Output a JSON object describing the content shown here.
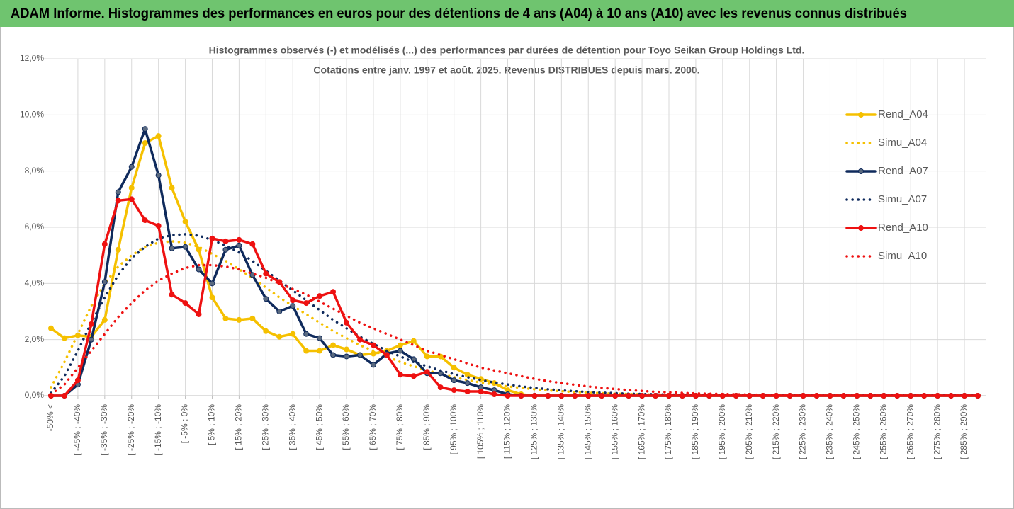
{
  "header": {
    "title": "ADAM Informe. Histogrammes des performances en euros pour des détentions de 4 ans (A04) à 10 ans (A10) avec les revenus connus distribués"
  },
  "chart_data": {
    "type": "line",
    "title": "Histogrammes observés (-) et modélisés (...) des performances par durées de détention pour Toyo Seikan Group Holdings Ltd.",
    "subtitle": "Cotations entre janv. 1997 et août. 2025. Revenus DISTRIBUES depuis mars. 2000.",
    "categories": [
      "-50% <",
      null,
      "[ -45% ; -40%",
      null,
      "[ -35% ; -30%",
      null,
      "[ -25% ; -20%",
      null,
      "[ -15% ; -10%",
      null,
      "[ -5% ; 0%",
      null,
      "[ 5% ; 10%",
      null,
      "[ 15% ; 20%",
      null,
      "[ 25% ; 30%",
      null,
      "[ 35% ; 40%",
      null,
      "[ 45% ; 50%",
      null,
      "[ 55% ; 60%",
      null,
      "[ 65% ; 70%",
      null,
      "[ 75% ; 80%",
      null,
      "[ 85% ; 90%",
      null,
      "[ 95% ; 100%",
      null,
      "[ 105% ; 110%",
      null,
      "[ 115% ; 120%",
      null,
      "[ 125% ; 130%",
      null,
      "[ 135% ; 140%",
      null,
      "[ 145% ; 150%",
      null,
      "[ 155% ; 160%",
      null,
      "[ 165% ; 170%",
      null,
      "[ 175% ; 180%",
      null,
      "[ 185% ; 190%",
      null,
      "[ 195% ; 200%",
      null,
      "[ 205% ; 210%",
      null,
      "[ 215% ; 220%",
      null,
      "[ 225% ; 230%",
      null,
      "[ 235% ; 240%",
      null,
      "[ 245% ; 250%",
      null,
      "[ 255% ; 260%",
      null,
      "[ 265% ; 270%",
      null,
      "[ 275% ; 280%",
      null,
      "[ 285% ; 290%",
      null
    ],
    "series": [
      {
        "name": "Rend_A04",
        "color": "#f5c000",
        "style": "solid",
        "markers": true,
        "values": [
          2.4,
          2.05,
          2.15,
          2.1,
          2.7,
          5.2,
          7.4,
          9.0,
          9.25,
          7.4,
          6.2,
          5.2,
          3.5,
          2.75,
          2.7,
          2.75,
          2.3,
          2.1,
          2.2,
          1.6,
          1.6,
          1.8,
          1.65,
          1.45,
          1.5,
          1.6,
          1.8,
          1.95,
          1.4,
          1.4,
          1.0,
          0.75,
          0.6,
          0.45,
          0.2,
          0.05,
          0,
          0,
          0,
          0,
          0,
          0,
          0,
          0,
          0,
          0,
          0,
          0,
          0,
          0,
          0,
          0,
          0,
          0,
          0,
          0,
          0,
          0,
          0,
          0,
          0,
          0,
          0,
          0,
          0,
          0,
          0,
          0,
          0,
          0
        ]
      },
      {
        "name": "Simu_A04",
        "color": "#f5c000",
        "style": "dotted",
        "markers": false,
        "values": [
          0.3,
          1.2,
          2.2,
          3.2,
          4.0,
          4.6,
          5.0,
          5.3,
          5.45,
          5.5,
          5.45,
          5.3,
          5.05,
          4.8,
          4.5,
          4.2,
          3.85,
          3.5,
          3.2,
          2.9,
          2.6,
          2.3,
          2.05,
          1.8,
          1.6,
          1.4,
          1.2,
          1.05,
          0.9,
          0.78,
          0.66,
          0.56,
          0.47,
          0.4,
          0.33,
          0.28,
          0.23,
          0.19,
          0.16,
          0.13,
          0.11,
          0.09,
          0.07,
          0.06,
          0.05,
          0.04,
          0.03,
          0.03,
          0.02,
          0.02,
          0.01,
          0.01,
          0.01,
          0.01,
          0.01,
          0.01,
          0.01,
          0.01,
          0.01,
          0.01,
          0.01,
          0.01,
          0.01,
          0.01,
          0.01,
          0.01,
          0.01,
          0.01,
          0.01,
          0.01
        ]
      },
      {
        "name": "Rend_A07",
        "color": "#0f2a5c",
        "style": "solid",
        "markers": true,
        "values": [
          0,
          0,
          0.4,
          2.0,
          4.05,
          7.25,
          8.15,
          9.5,
          7.85,
          5.25,
          5.3,
          4.5,
          4.0,
          5.2,
          5.35,
          4.3,
          3.45,
          3.0,
          3.2,
          2.2,
          2.05,
          1.45,
          1.4,
          1.45,
          1.1,
          1.5,
          1.6,
          1.3,
          0.8,
          0.8,
          0.55,
          0.45,
          0.3,
          0.2,
          0.05,
          0,
          0,
          0,
          0,
          0,
          0,
          0,
          0,
          0,
          0,
          0,
          0,
          0,
          0,
          0,
          0,
          0,
          0,
          0,
          0,
          0,
          0,
          0,
          0,
          0,
          0,
          0,
          0,
          0,
          0,
          0,
          0,
          0,
          0,
          0
        ]
      },
      {
        "name": "Simu_A07",
        "color": "#0f2a5c",
        "style": "dotted",
        "markers": false,
        "values": [
          0.1,
          0.7,
          1.6,
          2.6,
          3.5,
          4.3,
          4.9,
          5.3,
          5.6,
          5.72,
          5.75,
          5.7,
          5.55,
          5.35,
          5.1,
          4.8,
          4.45,
          4.1,
          3.75,
          3.4,
          3.05,
          2.7,
          2.4,
          2.1,
          1.85,
          1.6,
          1.4,
          1.2,
          1.05,
          0.9,
          0.77,
          0.66,
          0.56,
          0.47,
          0.4,
          0.33,
          0.28,
          0.23,
          0.19,
          0.16,
          0.13,
          0.11,
          0.09,
          0.07,
          0.06,
          0.05,
          0.04,
          0.03,
          0.02,
          0.02,
          0.01,
          0.01,
          0.01,
          0.01,
          0.01,
          0.01,
          0.01,
          0.01,
          0.01,
          0.01,
          0.01,
          0.01,
          0.01,
          0.01,
          0.01,
          0.01,
          0.01,
          0.01,
          0.01,
          0.01
        ]
      },
      {
        "name": "Rend_A10",
        "color": "#ee1111",
        "style": "solid",
        "markers": true,
        "values": [
          0,
          0,
          0.55,
          2.55,
          5.4,
          6.95,
          7.0,
          6.25,
          6.05,
          3.6,
          3.3,
          2.9,
          5.6,
          5.5,
          5.55,
          5.4,
          4.35,
          4.05,
          3.4,
          3.3,
          3.55,
          3.7,
          2.6,
          2.0,
          1.8,
          1.45,
          0.75,
          0.7,
          0.85,
          0.3,
          0.2,
          0.15,
          0.15,
          0.05,
          0,
          0,
          0,
          0,
          0,
          0,
          0,
          0,
          0,
          0,
          0,
          0,
          0,
          0,
          0,
          0,
          0,
          0,
          0,
          0,
          0,
          0,
          0,
          0,
          0,
          0,
          0,
          0,
          0,
          0,
          0,
          0,
          0,
          0,
          0,
          0
        ]
      },
      {
        "name": "Simu_A10",
        "color": "#ee1111",
        "style": "dotted",
        "markers": false,
        "values": [
          0.05,
          0.4,
          1.0,
          1.6,
          2.2,
          2.8,
          3.3,
          3.75,
          4.1,
          4.35,
          4.55,
          4.65,
          4.65,
          4.6,
          4.5,
          4.35,
          4.2,
          4.0,
          3.8,
          3.6,
          3.35,
          3.1,
          2.85,
          2.6,
          2.4,
          2.2,
          2.0,
          1.8,
          1.6,
          1.45,
          1.3,
          1.15,
          1.0,
          0.9,
          0.8,
          0.7,
          0.6,
          0.52,
          0.45,
          0.39,
          0.33,
          0.28,
          0.24,
          0.2,
          0.17,
          0.14,
          0.12,
          0.1,
          0.08,
          0.07,
          0.06,
          0.05,
          0.04,
          0.03,
          0.03,
          0.02,
          0.02,
          0.01,
          0.01,
          0.01,
          0.01,
          0.01,
          0.01,
          0.01,
          0.01,
          0.01,
          0.01,
          0.01,
          0.01,
          0.01
        ]
      }
    ],
    "ylim": [
      0,
      12
    ],
    "yticks": [
      {
        "value": 0,
        "label": "0,0%"
      },
      {
        "value": 2,
        "label": "2,0%"
      },
      {
        "value": 4,
        "label": "4,0%"
      },
      {
        "value": 6,
        "label": "6,0%"
      },
      {
        "value": 8,
        "label": "8,0%"
      },
      {
        "value": 10,
        "label": "10,0%"
      },
      {
        "value": 12,
        "label": "12,0%"
      }
    ],
    "grid": true,
    "legend": "right"
  }
}
